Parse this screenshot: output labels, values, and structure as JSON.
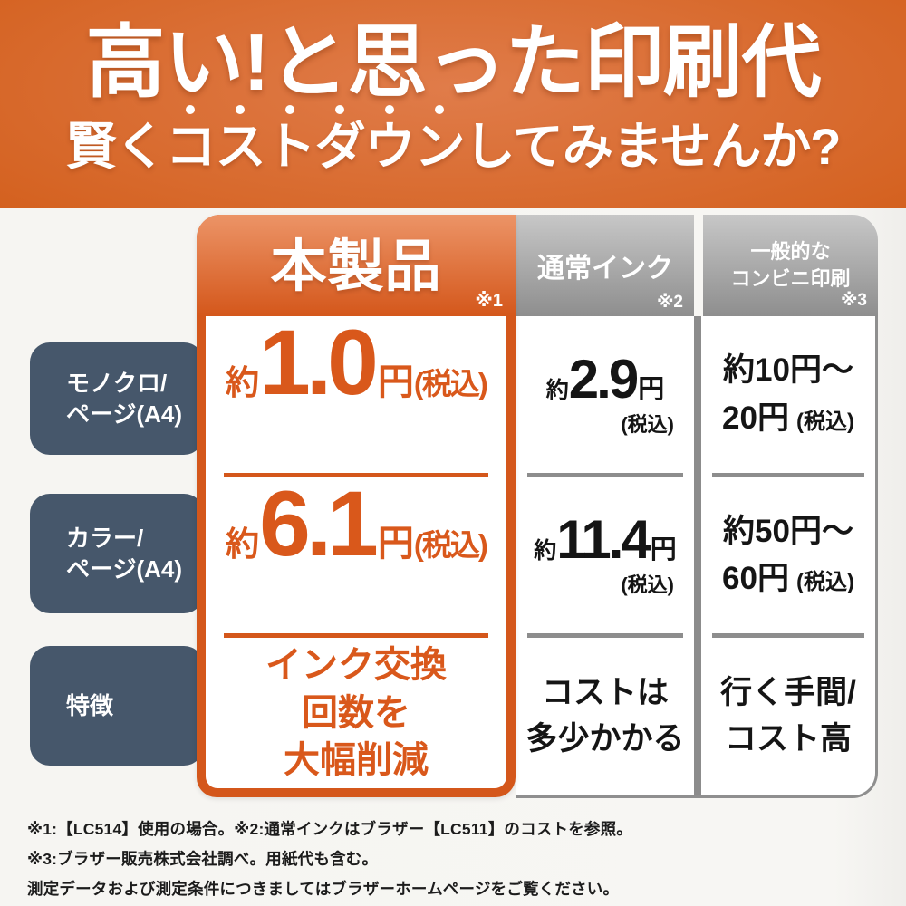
{
  "banner": {
    "line1": "高い!と思った印刷代",
    "line2_pre": "賢く",
    "line2_em": "コストダウン",
    "line2_post": "してみませんか?"
  },
  "table": {
    "columns": [
      {
        "label": "本製品",
        "note": "※1"
      },
      {
        "label": "通常インク",
        "note": "※2"
      },
      {
        "label_line1": "一般的な",
        "label_line2": "コンビニ印刷",
        "note": "※3"
      }
    ],
    "row_labels": [
      {
        "line1": "モノクロ/",
        "line2": "ページ(A4)"
      },
      {
        "line1": "カラー/",
        "line2": "ページ(A4)"
      },
      {
        "line1": "特徴"
      }
    ],
    "monochrome": {
      "product": {
        "prefix": "約",
        "value": "1.0",
        "unit": "円",
        "tax": "(税込)"
      },
      "normal_ink": {
        "prefix": "約",
        "value": "2.9",
        "unit": "円",
        "tax": "(税込)"
      },
      "convenience": {
        "line1": "約10円〜",
        "line2": "20円",
        "tax": "(税込)"
      }
    },
    "color": {
      "product": {
        "prefix": "約",
        "value": "6.1",
        "unit": "円",
        "tax": "(税込)"
      },
      "normal_ink": {
        "prefix": "約",
        "value": "11.4",
        "unit": "円",
        "tax": "(税込)"
      },
      "convenience": {
        "line1": "約50円〜",
        "line2": "60円",
        "tax": "(税込)"
      }
    },
    "features": {
      "product": [
        "インク交換",
        "回数を",
        "大幅削減"
      ],
      "normal_ink": [
        "コストは",
        "多少かかる"
      ],
      "convenience": [
        "行く手間/",
        "コスト高"
      ]
    }
  },
  "footnotes": [
    "※1:【LC514】使用の場合。※2:通常インクはブラザー【LC511】のコストを参照。",
    "※3:ブラザー販売株式会社調べ。用紙代も含む。",
    "測定データおよび測定条件につきましてはブラザーホームページをご覧ください。"
  ],
  "colors": {
    "accent_orange": "#d4571b",
    "orange_text": "#d9581b",
    "slate_label": "#46576b",
    "header_gray_top": "#c7c7c7",
    "header_gray_bottom": "#8e8e8e",
    "divider_gray": "#8d8d8d",
    "paper_background": "#f6f5f2",
    "body_text": "#151515"
  }
}
